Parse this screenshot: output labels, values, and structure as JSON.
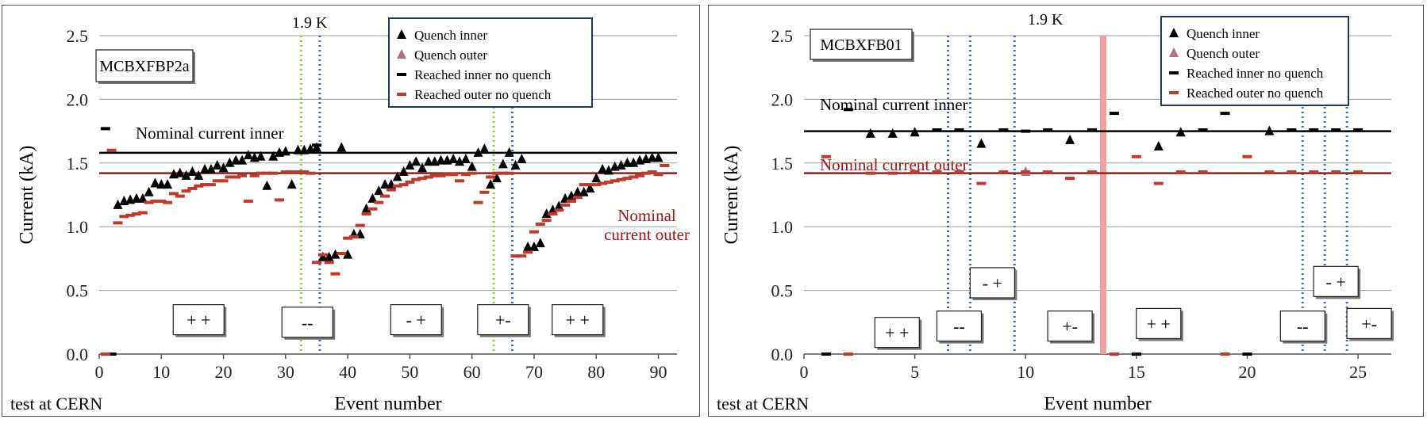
{
  "chart_data": [
    {
      "type": "scatter",
      "box_label": "MCBXFBP2a",
      "temperature_label": "1.9 K",
      "footer_note": "test at CERN",
      "xlabel": "Event number",
      "ylabel": "Current (kA)",
      "xlim": [
        0,
        93
      ],
      "ylim": [
        0,
        2.5
      ],
      "x_ticks": [
        0,
        10,
        20,
        30,
        40,
        50,
        60,
        70,
        80,
        90
      ],
      "y_ticks": [
        "0.0",
        "0.5",
        "1.0",
        "1.5",
        "2.0",
        "2.5"
      ],
      "grid": "horizontal",
      "legend_position": "top-right",
      "legend": [
        {
          "name": "Quench inner",
          "marker": "triangle",
          "color": "#000000"
        },
        {
          "name": "Quench outer",
          "marker": "triangle",
          "color": "#b07080"
        },
        {
          "name": "Reached inner no quench",
          "marker": "dash",
          "color": "#000000"
        },
        {
          "name": "Reached outer no quench",
          "marker": "dash",
          "color": "#c0392b"
        }
      ],
      "reference_lines": [
        {
          "label": "Nominal current inner",
          "value": 1.58,
          "color": "#000000"
        },
        {
          "label": "Nominal current outer",
          "value": 1.42,
          "color": "#9b1b1b"
        }
      ],
      "vertical_lines": [
        {
          "x": 32.5,
          "color": "#8fcf3c"
        },
        {
          "x": 35.5,
          "color": "#3a6fb5"
        },
        {
          "x": 63.5,
          "color": "#8fcf3c"
        },
        {
          "x": 66.5,
          "color": "#3a6fb5"
        }
      ],
      "polarity_labels": [
        {
          "text": "+ +",
          "x": 16,
          "y": 0.27
        },
        {
          "text": "--",
          "x": 33.5,
          "y": 0.25
        },
        {
          "text": "- +",
          "x": 51,
          "y": 0.27
        },
        {
          "text": "+-",
          "x": 65,
          "y": 0.27
        },
        {
          "text": "+ +",
          "x": 77,
          "y": 0.27
        }
      ],
      "series": [
        {
          "name": "Quench inner",
          "x": [
            3,
            4,
            5,
            6,
            7,
            8,
            9,
            10,
            11,
            12,
            13,
            14,
            15,
            16,
            17,
            18,
            19,
            20,
            21,
            22,
            23,
            24,
            25,
            26,
            27,
            28,
            29,
            30,
            31,
            32,
            33,
            34,
            35,
            36,
            37,
            38,
            39,
            40,
            41,
            42,
            43,
            44,
            45,
            46,
            47,
            48,
            49,
            50,
            51,
            52,
            53,
            54,
            55,
            56,
            57,
            58,
            59,
            60,
            61,
            62,
            63,
            64,
            65,
            66,
            67,
            68,
            69,
            70,
            71,
            72,
            73,
            74,
            75,
            76,
            77,
            78,
            79,
            80,
            81,
            82,
            83,
            84,
            85,
            86,
            87,
            88,
            89,
            90
          ],
          "y": [
            1.17,
            1.2,
            1.21,
            1.22,
            1.22,
            1.27,
            1.34,
            1.33,
            1.33,
            1.41,
            1.42,
            1.4,
            1.43,
            1.4,
            1.45,
            1.45,
            1.48,
            1.46,
            1.5,
            1.52,
            1.52,
            1.56,
            1.54,
            1.55,
            1.32,
            1.55,
            1.58,
            1.59,
            1.33,
            1.6,
            1.6,
            1.61,
            1.62,
            0.76,
            0.76,
            0.78,
            1.62,
            0.78,
            0.94,
            0.94,
            1.14,
            1.22,
            1.28,
            1.33,
            1.33,
            1.39,
            1.43,
            1.48,
            1.51,
            1.46,
            1.51,
            1.51,
            1.52,
            1.52,
            1.53,
            1.51,
            1.53,
            1.47,
            1.58,
            1.61,
            1.33,
            1.38,
            1.49,
            1.58,
            1.48,
            1.53,
            0.84,
            0.84,
            0.87,
            1.1,
            1.13,
            1.16,
            1.22,
            1.24,
            1.27,
            1.27,
            1.3,
            1.38,
            1.45,
            1.44,
            1.47,
            1.48,
            1.5,
            1.5,
            1.52,
            1.53,
            1.54,
            1.54
          ]
        },
        {
          "name": "Quench outer",
          "x": [],
          "y": []
        },
        {
          "name": "Reached inner no quench",
          "x": [
            1,
            2,
            35
          ],
          "y": [
            1.77,
            0.0,
            1.64
          ]
        },
        {
          "name": "Reached outer no quench",
          "x": [
            1,
            2,
            3,
            4,
            5,
            6,
            7,
            8,
            9,
            10,
            11,
            12,
            13,
            14,
            15,
            16,
            17,
            18,
            19,
            20,
            21,
            22,
            23,
            24,
            25,
            26,
            27,
            28,
            29,
            30,
            31,
            32,
            33,
            34,
            35,
            36,
            37,
            38,
            39,
            40,
            41,
            42,
            43,
            44,
            45,
            46,
            47,
            48,
            49,
            50,
            51,
            52,
            53,
            54,
            55,
            56,
            57,
            58,
            59,
            60,
            61,
            62,
            63,
            64,
            65,
            66,
            67,
            68,
            69,
            70,
            71,
            72,
            73,
            74,
            75,
            76,
            77,
            78,
            79,
            80,
            81,
            82,
            83,
            84,
            85,
            86,
            87,
            88,
            89,
            90,
            91
          ],
          "y": [
            0.0,
            1.6,
            1.03,
            1.08,
            1.09,
            1.1,
            1.11,
            1.19,
            1.2,
            1.2,
            1.19,
            1.26,
            1.24,
            1.28,
            1.3,
            1.32,
            1.33,
            1.33,
            1.36,
            1.36,
            1.39,
            1.39,
            1.4,
            1.2,
            1.4,
            1.42,
            1.42,
            1.42,
            1.21,
            1.43,
            1.43,
            1.43,
            1.43,
            1.42,
            0.72,
            0.78,
            0.72,
            0.63,
            0.79,
            0.91,
            0.92,
            1.01,
            1.1,
            1.14,
            1.19,
            1.24,
            1.29,
            1.32,
            1.33,
            1.35,
            1.37,
            1.38,
            1.39,
            1.4,
            1.4,
            1.41,
            1.41,
            1.36,
            1.41,
            1.42,
            1.19,
            1.27,
            1.39,
            1.42,
            1.42,
            1.42,
            0.77,
            0.77,
            0.8,
            0.96,
            1.02,
            1.05,
            1.1,
            1.13,
            1.17,
            1.2,
            1.23,
            1.33,
            1.33,
            1.33,
            1.34,
            1.35,
            1.36,
            1.37,
            1.38,
            1.39,
            1.4,
            1.42,
            1.43,
            1.41,
            1.48
          ]
        }
      ]
    },
    {
      "type": "scatter",
      "box_label": "MCBXFB01",
      "temperature_label": "1.9 K",
      "footer_note": "test at CERN",
      "xlabel": "Event number",
      "ylabel": "Current (kA)",
      "xlim": [
        0,
        26.5
      ],
      "ylim": [
        0,
        2.5
      ],
      "x_ticks": [
        0,
        5,
        10,
        15,
        20,
        25
      ],
      "y_ticks": [
        "0.0",
        "0.5",
        "1.0",
        "1.5",
        "2.0",
        "2.5"
      ],
      "grid": "horizontal",
      "legend_position": "top-right",
      "legend": [
        {
          "name": "Quench inner",
          "marker": "triangle",
          "color": "#000000"
        },
        {
          "name": "Quench outer",
          "marker": "triangle",
          "color": "#b07080"
        },
        {
          "name": "Reached inner no quench",
          "marker": "dash",
          "color": "#000000"
        },
        {
          "name": "Reached outer no quench",
          "marker": "dash",
          "color": "#c0392b"
        }
      ],
      "reference_lines": [
        {
          "label": "Nominal current inner",
          "value": 1.75,
          "color": "#000000"
        },
        {
          "label": "Nominal current outer",
          "value": 1.42,
          "color": "#9b1b1b"
        }
      ],
      "vertical_lines": [
        {
          "x": 6.5,
          "color": "#3a6fb5"
        },
        {
          "x": 7.5,
          "color": "#3a6fb5"
        },
        {
          "x": 9.5,
          "color": "#3a6fb5"
        },
        {
          "x": 22.5,
          "color": "#3a6fb5"
        },
        {
          "x": 23.5,
          "color": "#3a6fb5"
        },
        {
          "x": 24.5,
          "color": "#3a6fb5"
        }
      ],
      "highlight_band": {
        "x": 13.5,
        "color": "#f2a0a0"
      },
      "polarity_labels": [
        {
          "text": "+ +",
          "x": 4.2,
          "y": 0.17
        },
        {
          "text": "--",
          "x": 7.0,
          "y": 0.22
        },
        {
          "text": "- +",
          "x": 8.5,
          "y": 0.56
        },
        {
          "text": "+-",
          "x": 12.0,
          "y": 0.22
        },
        {
          "text": "+ +",
          "x": 16.0,
          "y": 0.24
        },
        {
          "text": "--",
          "x": 22.5,
          "y": 0.22
        },
        {
          "text": "- +",
          "x": 24.0,
          "y": 0.57
        },
        {
          "text": "+-",
          "x": 25.5,
          "y": 0.24
        }
      ],
      "series": [
        {
          "name": "Quench inner",
          "x": [
            3,
            4,
            5,
            8,
            12,
            16,
            17,
            21
          ],
          "y": [
            1.73,
            1.73,
            1.74,
            1.65,
            1.68,
            1.63,
            1.74,
            1.75
          ]
        },
        {
          "name": "Quench outer",
          "x": [
            10
          ],
          "y": [
            1.43
          ]
        },
        {
          "name": "Reached inner no quench",
          "x": [
            1,
            2,
            6,
            7,
            9,
            10,
            11,
            13,
            14,
            15,
            18,
            19,
            20,
            22,
            23,
            24,
            25
          ],
          "y": [
            0.0,
            1.92,
            1.76,
            1.76,
            1.76,
            1.75,
            1.76,
            1.76,
            1.89,
            0.0,
            1.76,
            1.89,
            0.0,
            1.76,
            1.76,
            1.76,
            1.76
          ]
        },
        {
          "name": "Reached outer no quench",
          "x": [
            1,
            2,
            3,
            4,
            5,
            6,
            7,
            8,
            9,
            10,
            11,
            12,
            13,
            14,
            15,
            16,
            17,
            18,
            19,
            20,
            21,
            22,
            23,
            24,
            25
          ],
          "y": [
            1.55,
            0.0,
            1.42,
            1.42,
            1.43,
            1.43,
            1.43,
            1.34,
            1.43,
            1.43,
            1.43,
            1.38,
            1.43,
            0.0,
            1.55,
            1.34,
            1.43,
            1.43,
            0.0,
            1.55,
            1.43,
            1.43,
            1.43,
            1.43,
            1.43
          ]
        }
      ]
    }
  ]
}
